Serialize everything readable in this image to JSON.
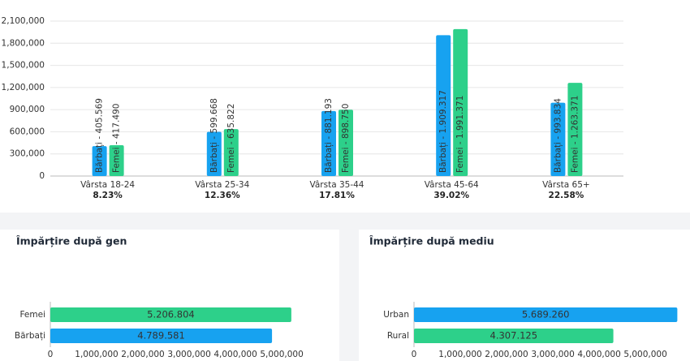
{
  "chart_data": [
    {
      "type": "bar",
      "categories": [
        "Vârsta 18-24",
        "Vârsta 25-34",
        "Vârsta 35-44",
        "Vârsta 45-64",
        "Vârsta 65+"
      ],
      "shares": [
        "8.23%",
        "12.36%",
        "17.81%",
        "39.02%",
        "22.58%"
      ],
      "series": [
        {
          "name": "Bărbați",
          "color": "#17a2f0",
          "values": [
            405569,
            599668,
            881193,
            1909317,
            993834
          ],
          "value_labels": [
            "Bărbați - 405.569",
            "Bărbați - 599.668",
            "Bărbați - 881.193",
            "Bărbați - 1.909.317",
            "Bărbați - 993.834"
          ]
        },
        {
          "name": "Femei",
          "color": "#2dd08a",
          "values": [
            417490,
            635822,
            898750,
            1991371,
            1263371
          ],
          "value_labels": [
            "Femei - 417.490",
            "Femei - 635.822",
            "Femei - 898.750",
            "Femei - 1.991.371",
            "Femei - 1.263.371"
          ]
        }
      ],
      "ylim": [
        0,
        2100000
      ],
      "yticks": [
        0,
        {
          "value": 300000,
          "label": "300,000"
        },
        {
          "value": 600000,
          "label": "600,000"
        },
        {
          "value": 900000,
          "label": "900,000"
        },
        {
          "value": 1200000,
          "label": "1,200,000"
        },
        {
          "value": 1500000,
          "label": "1,500,000"
        },
        {
          "value": 1800000,
          "label": "1,800,000"
        },
        {
          "value": 2100000,
          "label": "2,100,000"
        }
      ],
      "grid": true
    },
    {
      "type": "barh",
      "title": "Împărțire după gen",
      "categories": [
        "Femei",
        "Bărbați"
      ],
      "values": [
        5206804,
        4789581
      ],
      "value_labels": [
        "5.206.804",
        "4.789.581"
      ],
      "colors": [
        "#2dd08a",
        "#17a2f0"
      ],
      "xlim": [
        0,
        5700000
      ],
      "xticks": [
        0,
        {
          "value": 1000000,
          "label": "1,000,000"
        },
        {
          "value": 2000000,
          "label": "2,000,000"
        },
        {
          "value": 3000000,
          "label": "3,000,000"
        },
        {
          "value": 4000000,
          "label": "4,000,000"
        },
        {
          "value": 5000000,
          "label": "5,000,000"
        }
      ]
    },
    {
      "type": "barh",
      "title": "Împărțire după mediu",
      "categories": [
        "Urban",
        "Rural"
      ],
      "values": [
        5689260,
        4307125
      ],
      "value_labels": [
        "5.689.260",
        "4.307.125"
      ],
      "colors": [
        "#17a2f0",
        "#2dd08a"
      ],
      "xlim": [
        0,
        5700000
      ],
      "xticks": [
        0,
        {
          "value": 1000000,
          "label": "1,000,000"
        },
        {
          "value": 2000000,
          "label": "2,000,000"
        },
        {
          "value": 3000000,
          "label": "3,000,000"
        },
        {
          "value": 4000000,
          "label": "4,000,000"
        },
        {
          "value": 5000000,
          "label": "5,000,000"
        }
      ]
    }
  ]
}
